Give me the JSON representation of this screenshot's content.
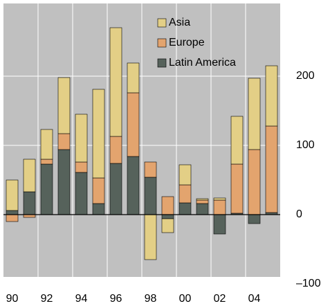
{
  "chart_data": {
    "type": "stacked-bar",
    "categories": [
      "90",
      null,
      "92",
      null,
      "94",
      null,
      "96",
      null,
      "98",
      null,
      "00",
      null,
      "02",
      null,
      "04",
      null
    ],
    "series": [
      {
        "name": "Asia",
        "color": "#e3cf86",
        "values": [
          44,
          47,
          43,
          81,
          69,
          128,
          157,
          43,
          -65,
          -20,
          29,
          2,
          3,
          69,
          103,
          87
        ]
      },
      {
        "name": "Europe",
        "color": "#e3a46e",
        "values": [
          -10,
          -4,
          7,
          23,
          15,
          37,
          39,
          92,
          22,
          26,
          26,
          5,
          21,
          71,
          94,
          125
        ]
      },
      {
        "name": "Latin America",
        "color": "#56625b",
        "values": [
          6,
          33,
          73,
          94,
          61,
          16,
          74,
          84,
          54,
          -6,
          17,
          16,
          -28,
          2,
          -13,
          3
        ]
      }
    ],
    "ylim": [
      -90,
      305
    ],
    "yticks": [
      {
        "value": -100,
        "label": "–100"
      },
      0,
      100,
      200
    ],
    "grid": true,
    "legend": "upper-center"
  }
}
